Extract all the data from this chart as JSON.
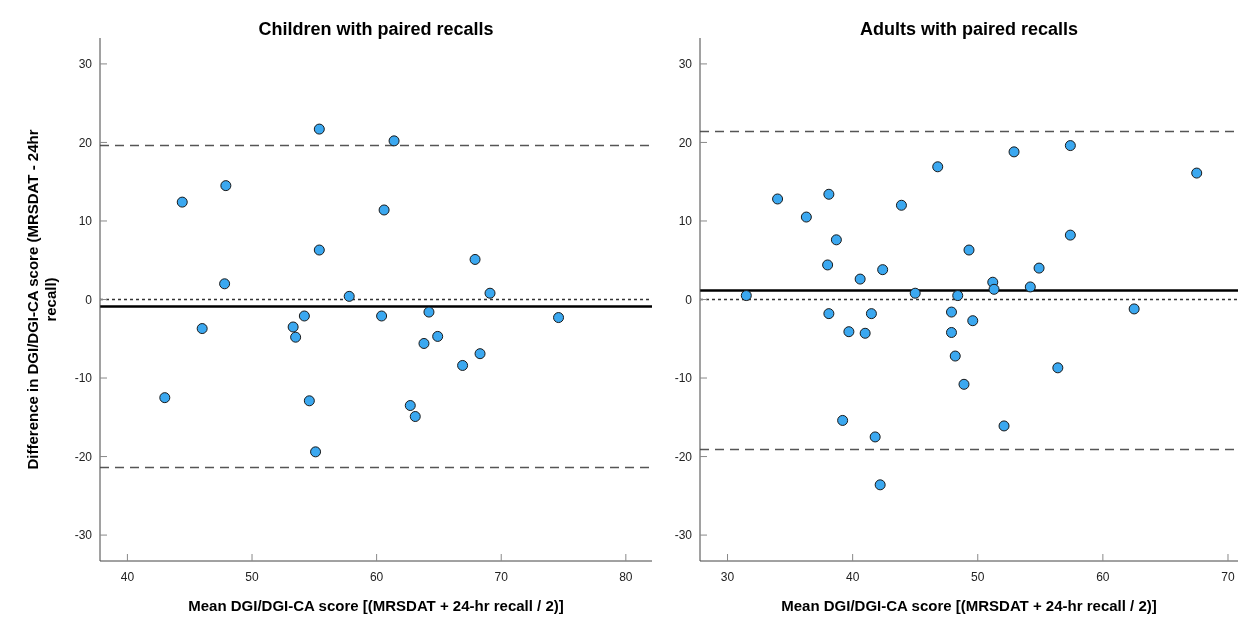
{
  "chart_data": [
    {
      "type": "scatter",
      "title": "Children with paired recalls",
      "xlabel": "Mean DGI/DGI-CA score [(MRSDAT + 24-hr recall / 2)]",
      "ylabel": "Difference in DGI/DGI-CA score (MRSDAT - 24hr recall)",
      "marker": "circle",
      "grid": false,
      "xlim": [
        37.8,
        82.1
      ],
      "xticks": [
        40,
        50,
        60,
        70,
        80
      ],
      "ylim": [
        -33.3,
        33.3
      ],
      "yticks": [
        -30,
        -20,
        -10,
        0,
        10,
        20,
        30
      ],
      "series": [
        {
          "color": "#3ba8f0",
          "x": [
            44.4,
            47.9,
            47.8,
            46.0,
            43.0,
            55.4,
            55.4,
            57.8,
            54.2,
            53.3,
            53.5,
            54.6,
            55.1,
            61.4,
            60.6,
            67.9,
            69.1,
            60.4,
            64.2,
            74.6,
            63.8,
            64.9,
            68.3,
            66.9,
            62.7,
            63.1
          ],
          "values": [
            12.4,
            14.5,
            2.0,
            -3.7,
            -12.5,
            21.7,
            6.3,
            0.4,
            -2.1,
            -3.5,
            -4.8,
            -12.9,
            -19.4,
            20.2,
            11.4,
            5.1,
            0.8,
            -2.1,
            -1.6,
            -2.3,
            -5.6,
            -4.7,
            -6.9,
            -8.4,
            -13.5,
            -14.9
          ]
        }
      ],
      "ref_lines": [
        {
          "axis": "y",
          "value": 19.6,
          "line_style": "dashed",
          "color": "#555555"
        },
        {
          "axis": "y",
          "value": -21.4,
          "line_style": "dashed",
          "color": "#555555"
        },
        {
          "axis": "y",
          "value": 0,
          "line_style": "dotted",
          "color": "#333333"
        },
        {
          "axis": "y",
          "value": -0.9,
          "line_style": "solid",
          "color": "#000000"
        }
      ]
    },
    {
      "type": "scatter",
      "title": "Adults with paired recalls",
      "xlabel": "Mean DGI/DGI-CA score [(MRSDAT + 24-hr recall / 2)]",
      "marker": "circle",
      "grid": false,
      "xlim": [
        27.8,
        70.8
      ],
      "xticks": [
        30,
        40,
        50,
        60,
        70
      ],
      "ylim": [
        -33.3,
        33.3
      ],
      "yticks": [
        -30,
        -20,
        -10,
        0,
        10,
        20,
        30
      ],
      "series": [
        {
          "color": "#3ba8f0",
          "x": [
            31.5,
            34.0,
            36.3,
            38.1,
            38.7,
            38.0,
            40.6,
            42.4,
            43.9,
            46.8,
            45.0,
            48.4,
            49.3,
            38.1,
            41.5,
            39.7,
            41.0,
            47.9,
            47.9,
            49.6,
            48.2,
            48.9,
            39.2,
            41.8,
            42.2,
            52.9,
            57.4,
            67.5,
            57.4,
            54.9,
            51.2,
            51.3,
            54.2,
            62.5,
            56.4,
            52.1
          ],
          "values": [
            0.5,
            12.8,
            10.5,
            13.4,
            7.6,
            4.4,
            2.6,
            3.8,
            12.0,
            16.9,
            0.8,
            0.5,
            6.3,
            -1.8,
            -1.8,
            -4.1,
            -4.3,
            -1.6,
            -4.2,
            -2.7,
            -7.2,
            -10.8,
            -15.4,
            -17.5,
            -23.6,
            18.8,
            19.6,
            16.1,
            8.2,
            4.0,
            2.2,
            1.3,
            1.6,
            -1.2,
            -8.7,
            -16.1
          ]
        }
      ],
      "ref_lines": [
        {
          "axis": "y",
          "value": 21.4,
          "line_style": "dashed",
          "color": "#555555"
        },
        {
          "axis": "y",
          "value": -19.1,
          "line_style": "dashed",
          "color": "#555555"
        },
        {
          "axis": "y",
          "value": 0,
          "line_style": "dotted",
          "color": "#333333"
        },
        {
          "axis": "y",
          "value": 1.15,
          "line_style": "solid",
          "color": "#000000"
        }
      ]
    }
  ]
}
